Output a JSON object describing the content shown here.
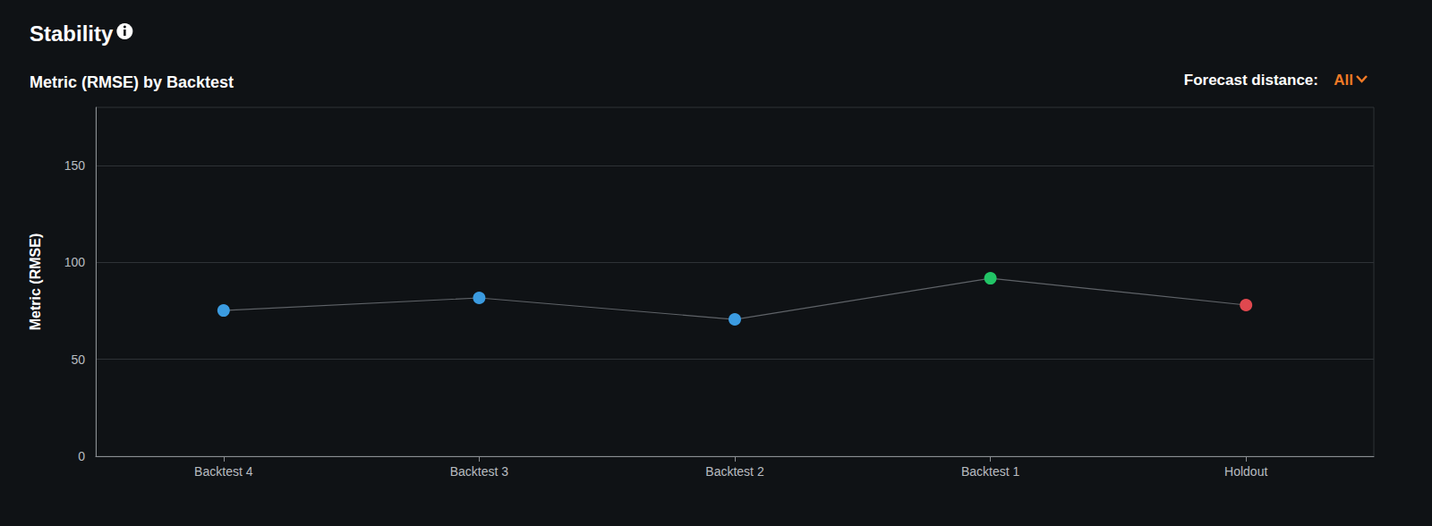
{
  "chart_data": {
    "type": "line",
    "title": "Stability",
    "subtitle": "Metric (RMSE) by Backtest",
    "annotations": [
      "Forecast distance:",
      "All"
    ],
    "ylabel": "Metric (RMSE)",
    "categories": [
      "Backtest 4",
      "Backtest 3",
      "Backtest 2",
      "Backtest 1",
      "Holdout"
    ],
    "values": [
      75.2,
      81.7,
      70.6,
      91.8,
      78.0
    ],
    "colors": [
      "#3b9be0",
      "#3b9be0",
      "#3b9be0",
      "#22c466",
      "#e0484f"
    ],
    "color": "#5f6368",
    "ylim": [
      0,
      180
    ],
    "yticks": [
      0,
      50,
      100,
      150
    ],
    "grid": true
  }
}
